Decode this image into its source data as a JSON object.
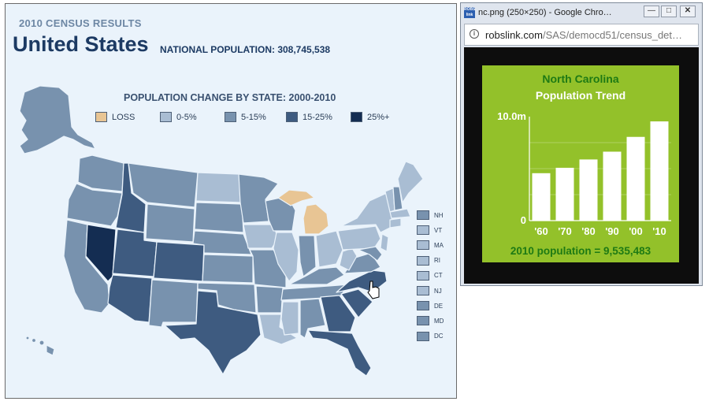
{
  "map": {
    "subtitle": "2010 CENSUS RESULTS",
    "title": "United States",
    "national_population": "NATIONAL POPULATION: 308,745,538",
    "map_title": "POPULATION CHANGE BY STATE: 2000-2010",
    "legend": [
      {
        "label": "LOSS",
        "color": "#e8c594"
      },
      {
        "label": "0-5%",
        "color": "#a9bdd3"
      },
      {
        "label": "5-15%",
        "color": "#7892ae"
      },
      {
        "label": "15-25%",
        "color": "#3e5b80"
      },
      {
        "label": "25%+",
        "color": "#142d52"
      }
    ],
    "small_states": [
      {
        "label": "NH",
        "color": "#7892ae"
      },
      {
        "label": "VT",
        "color": "#a9bdd3"
      },
      {
        "label": "MA",
        "color": "#a9bdd3"
      },
      {
        "label": "RI",
        "color": "#a9bdd3"
      },
      {
        "label": "CT",
        "color": "#a9bdd3"
      },
      {
        "label": "NJ",
        "color": "#a9bdd3"
      },
      {
        "label": "DE",
        "color": "#7892ae"
      },
      {
        "label": "MD",
        "color": "#7892ae"
      },
      {
        "label": "DC",
        "color": "#7892ae"
      }
    ]
  },
  "window": {
    "title": "nc.png (250×250) - Google Chro…",
    "url_host": "robslink.com",
    "url_path": "/SAS/democd51/census_det…",
    "favicon_text": "ROBS link"
  },
  "chart_data": {
    "type": "bar",
    "title": "North Carolina",
    "subtitle": "Population Trend",
    "categories": [
      "'60",
      "'70",
      "'80",
      "'90",
      "'00",
      "'10"
    ],
    "values": [
      4.56,
      5.08,
      5.88,
      6.63,
      8.05,
      9.54
    ],
    "ylim": [
      0,
      10
    ],
    "ytick_labels": [
      "0",
      "10.0m"
    ],
    "footer": "2010 population = 9,535,483",
    "colors": {
      "background": "#93c12a",
      "bar": "#ffffff",
      "title": "#1e7a14",
      "footer": "#1e7a14"
    }
  }
}
